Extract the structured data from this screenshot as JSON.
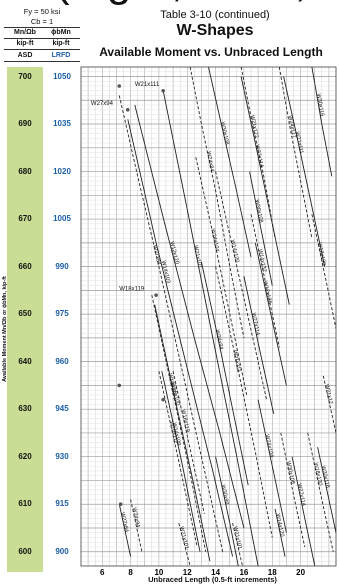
{
  "header": {
    "fy": "F<sub>y</sub> = 50 ksi",
    "fy_text": "Fy = 50 ksi",
    "cb_text": "Cb = 1",
    "col_asd_label": "Mn/Ωb",
    "col_lrfd_label": "ϕbMn",
    "units_asd": "kip-ft",
    "units_lrfd": "kip-ft",
    "asd": "ASD",
    "lrfd": "LRFD"
  },
  "title": {
    "line1": "Table 3-10 (continued)",
    "line2": "W-Shapes",
    "line3": "Available Moment vs. Unbraced Length"
  },
  "side_label": "Available Moment Mn/Ωb or ϕbMn, kip-ft",
  "chart_data": {
    "type": "line",
    "title": "Available Moment vs. Unbraced Length",
    "xlabel": "Unbraced Length (0.5-ft increments)",
    "ylabel": "Available Moment Mn/Ωb or ϕbMn, kip-ft",
    "xlim": [
      4.5,
      22.5
    ],
    "ylim": [
      597,
      702
    ],
    "x_ticks": [
      6,
      8,
      10,
      12,
      14,
      16,
      18,
      20
    ],
    "y_ticks_asd": [
      600,
      610,
      620,
      630,
      640,
      650,
      660,
      670,
      680,
      690,
      700
    ],
    "y_ticks_lrfd": [
      900,
      915,
      930,
      945,
      960,
      975,
      990,
      1005,
      1020,
      1035,
      1050
    ],
    "grid": true,
    "series": [
      {
        "name": "W21x101",
        "style": "solid",
        "points": [
          [
            10.3,
            697
          ],
          [
            12.0,
            672
          ],
          [
            13.8,
            645
          ],
          [
            15.5,
            620
          ],
          [
            17.0,
            597
          ]
        ]
      },
      {
        "name": "W27x94",
        "style": "dashed",
        "points": [
          [
            7.2,
            696
          ],
          [
            8.5,
            679
          ],
          [
            10.0,
            660
          ],
          [
            11.5,
            640
          ],
          [
            13.0,
            620
          ],
          [
            14.5,
            600
          ]
        ]
      },
      {
        "name": "W14x103",
        "style": "solid",
        "points": [
          [
            7.8,
            691
          ],
          [
            9.8,
            665
          ],
          [
            11.8,
            641
          ],
          [
            13.8,
            617
          ],
          [
            15.2,
            599
          ]
        ]
      },
      {
        "name": "W12x120",
        "style": "solid",
        "points": [
          [
            8.3,
            694
          ],
          [
            10.5,
            668
          ],
          [
            12.5,
            645
          ],
          [
            14.3,
            625
          ],
          [
            16.0,
            605
          ]
        ]
      },
      {
        "name": "W24x84",
        "style": "dashed",
        "points": [
          [
            12.2,
            702
          ],
          [
            13.0,
            690
          ],
          [
            14.0,
            676
          ],
          [
            15.0,
            660
          ],
          [
            16.0,
            645
          ]
        ]
      },
      {
        "name": "W30x108",
        "style": "solid",
        "points": [
          [
            13.5,
            702
          ],
          [
            14.4,
            690
          ],
          [
            15.4,
            677
          ],
          [
            16.5,
            662
          ]
        ]
      },
      {
        "name": "W21x122",
        "style": "dashed",
        "points": [
          [
            15.8,
            702
          ],
          [
            16.6,
            690
          ],
          [
            17.4,
            679
          ],
          [
            18.2,
            666
          ]
        ]
      },
      {
        "name": "W27x114",
        "style": "solid",
        "points": [
          [
            15.8,
            700
          ],
          [
            16.8,
            686
          ],
          [
            18.0,
            669
          ],
          [
            19.2,
            652
          ]
        ]
      },
      {
        "name": "W24x117",
        "style": "dashed",
        "points": [
          [
            18.5,
            702
          ],
          [
            19.2,
            690
          ],
          [
            20.0,
            678
          ],
          [
            20.8,
            666
          ]
        ]
      },
      {
        "name": "W21x111",
        "style": "solid",
        "points": [
          [
            18.8,
            700
          ],
          [
            19.7,
            688
          ],
          [
            20.7,
            674
          ],
          [
            21.7,
            660
          ]
        ]
      },
      {
        "name": "W30x116",
        "style": "solid",
        "points": [
          [
            20.8,
            702
          ],
          [
            21.5,
            690
          ],
          [
            22.2,
            679
          ]
        ]
      },
      {
        "name": "W14x120",
        "style": "dashed",
        "points": [
          [
            14.0,
            680
          ],
          [
            15.2,
            664
          ],
          [
            16.4,
            648
          ],
          [
            17.6,
            632
          ]
        ]
      },
      {
        "name": "W24x104",
        "style": "dashed",
        "points": [
          [
            12.6,
            683
          ],
          [
            13.8,
            667
          ],
          [
            15.0,
            650
          ],
          [
            16.2,
            633
          ]
        ]
      },
      {
        "name": "W30x108",
        "style": "solid",
        "points": [
          [
            16.4,
            680
          ],
          [
            17.2,
            668
          ],
          [
            18.0,
            656
          ]
        ]
      },
      {
        "name": "W14x132",
        "style": "dashed",
        "points": [
          [
            16.5,
            671
          ],
          [
            17.5,
            657
          ],
          [
            18.5,
            643
          ]
        ]
      },
      {
        "name": "W12x136",
        "style": "solid",
        "points": [
          [
            16.8,
            665
          ],
          [
            17.9,
            650
          ],
          [
            19.0,
            635
          ]
        ]
      },
      {
        "name": "W18x130",
        "style": "dashed",
        "points": [
          [
            20.8,
            671
          ],
          [
            21.8,
            657
          ],
          [
            22.5,
            647
          ]
        ]
      },
      {
        "name": "W24x94",
        "style": "solid",
        "points": [
          [
            13.0,
            661
          ],
          [
            14.1,
            646
          ],
          [
            15.2,
            630
          ],
          [
            16.3,
            614
          ]
        ]
      },
      {
        "name": "W27x114",
        "style": "solid",
        "points": [
          [
            16.0,
            658
          ],
          [
            17.0,
            644
          ],
          [
            18.1,
            629
          ]
        ]
      },
      {
        "name": "W18x119",
        "style": "dashed",
        "points": [
          [
            9.5,
            654
          ],
          [
            10.8,
            636
          ],
          [
            12.1,
            618
          ],
          [
            13.3,
            600
          ]
        ]
      },
      {
        "name": "W16x100",
        "style": "solid",
        "points": [
          [
            9.7,
            652
          ],
          [
            11.0,
            634
          ],
          [
            12.4,
            615
          ],
          [
            13.6,
            598
          ]
        ]
      },
      {
        "name": "W14x109",
        "style": "solid",
        "points": [
          [
            10.2,
            638
          ],
          [
            11.6,
            619
          ],
          [
            12.9,
            600
          ]
        ]
      },
      {
        "name": "W21x111",
        "style": "dashed",
        "points": [
          [
            14.0,
            660
          ],
          [
            15.4,
            641
          ],
          [
            16.8,
            621
          ],
          [
            18.0,
            603
          ]
        ]
      },
      {
        "name": "W18x119",
        "style": "dashed",
        "points": [
          [
            11.0,
            638
          ],
          [
            12.1,
            623
          ],
          [
            13.2,
            608
          ]
        ]
      },
      {
        "name": "W10x112",
        "style": "dashed",
        "points": [
          [
            10.0,
            638
          ],
          [
            11.4,
            619
          ],
          [
            12.7,
            601
          ]
        ]
      },
      {
        "name": "W30x99",
        "style": "solid",
        "points": [
          [
            14.0,
            620
          ],
          [
            15.0,
            606
          ],
          [
            15.6,
            597
          ]
        ]
      },
      {
        "name": "W24x104",
        "style": "solid",
        "points": [
          [
            17.0,
            632
          ],
          [
            18.0,
            618
          ],
          [
            19.0,
            604
          ]
        ]
      },
      {
        "name": "W30x108",
        "style": "dashed",
        "points": [
          [
            18.6,
            625
          ],
          [
            19.5,
            612
          ],
          [
            20.3,
            601
          ]
        ]
      },
      {
        "name": "W27x114",
        "style": "solid",
        "points": [
          [
            19.4,
            620
          ],
          [
            20.3,
            607
          ],
          [
            21.0,
            597
          ]
        ]
      },
      {
        "name": "W18x130",
        "style": "dashed",
        "points": [
          [
            20.5,
            625
          ],
          [
            21.5,
            611
          ],
          [
            22.3,
            600
          ]
        ]
      },
      {
        "name": "W30x116",
        "style": "solid",
        "points": [
          [
            21.2,
            622
          ],
          [
            22.0,
            611
          ],
          [
            22.5,
            604
          ]
        ]
      },
      {
        "name": "W21x122",
        "style": "dashed",
        "points": [
          [
            21.6,
            637
          ],
          [
            22.5,
            625
          ]
        ]
      },
      {
        "name": "W24x94",
        "style": "dashed",
        "points": [
          [
            8.0,
            611
          ],
          [
            8.8,
            600
          ]
        ]
      },
      {
        "name": "W21x101",
        "style": "dashed",
        "points": [
          [
            11.4,
            606
          ],
          [
            12.2,
            597
          ]
        ]
      },
      {
        "name": "W27x84",
        "style": "solid",
        "points": [
          [
            7.2,
            610
          ],
          [
            8.0,
            599
          ]
        ]
      },
      {
        "name": "W21x101",
        "style": "dashed",
        "points": [
          [
            15.2,
            606
          ],
          [
            15.9,
            597
          ]
        ]
      },
      {
        "name": "W14x120",
        "style": "solid",
        "points": [
          [
            18.2,
            609
          ],
          [
            18.9,
            599
          ]
        ]
      }
    ],
    "markers": [
      {
        "x": 7.2,
        "y": 698
      },
      {
        "x": 10.3,
        "y": 697
      },
      {
        "x": 7.8,
        "y": 693
      },
      {
        "x": 9.8,
        "y": 654
      },
      {
        "x": 7.2,
        "y": 635
      },
      {
        "x": 10.3,
        "y": 632
      },
      {
        "x": 7.3,
        "y": 610
      }
    ],
    "step_labels": [
      {
        "text": "W27x94",
        "x": 5.2,
        "y": 694
      },
      {
        "text": "W21x111",
        "x": 8.3,
        "y": 698
      },
      {
        "text": "W18x119",
        "x": 7.2,
        "y": 655
      }
    ]
  }
}
